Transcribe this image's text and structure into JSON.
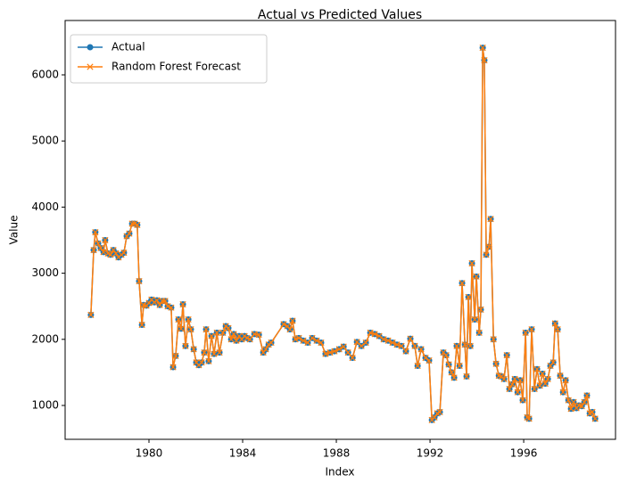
{
  "chart_data": {
    "type": "line",
    "title": "Actual vs Predicted Values",
    "xlabel": "Index",
    "ylabel": "Value",
    "x": [
      1977.52,
      1977.64,
      1977.71,
      1977.83,
      1977.94,
      1978.06,
      1978.13,
      1978.25,
      1978.36,
      1978.48,
      1978.59,
      1978.7,
      1978.82,
      1978.93,
      1979.05,
      1979.16,
      1979.28,
      1979.39,
      1979.5,
      1979.58,
      1979.7,
      1979.77,
      1979.89,
      1980.0,
      1980.11,
      1980.23,
      1980.34,
      1980.46,
      1980.57,
      1980.69,
      1980.8,
      1980.95,
      1981.03,
      1981.14,
      1981.26,
      1981.37,
      1981.45,
      1981.56,
      1981.68,
      1981.79,
      1981.91,
      1982.02,
      1982.13,
      1982.25,
      1982.36,
      1982.44,
      1982.55,
      1982.67,
      1982.78,
      1982.9,
      1983.01,
      1983.16,
      1983.28,
      1983.39,
      1983.51,
      1983.62,
      1983.73,
      1983.85,
      1983.96,
      1984.08,
      1984.19,
      1984.31,
      1984.5,
      1984.69,
      1984.88,
      1984.99,
      1985.11,
      1985.22,
      1985.75,
      1985.91,
      1986.02,
      1986.13,
      1986.25,
      1986.4,
      1986.59,
      1986.78,
      1986.97,
      1987.16,
      1987.35,
      1987.54,
      1987.73,
      1987.92,
      1988.12,
      1988.31,
      1988.5,
      1988.69,
      1988.88,
      1989.07,
      1989.26,
      1989.45,
      1989.64,
      1989.83,
      1990.02,
      1990.21,
      1990.4,
      1990.59,
      1990.78,
      1990.97,
      1991.16,
      1991.35,
      1991.47,
      1991.62,
      1991.81,
      1991.96,
      1992.08,
      1992.19,
      1992.31,
      1992.42,
      1992.57,
      1992.69,
      1992.8,
      1992.92,
      1993.03,
      1993.14,
      1993.26,
      1993.37,
      1993.49,
      1993.56,
      1993.64,
      1993.72,
      1993.79,
      1993.91,
      1993.98,
      1994.1,
      1994.17,
      1994.25,
      1994.32,
      1994.4,
      1994.52,
      1994.59,
      1994.71,
      1994.82,
      1994.94,
      1995.05,
      1995.16,
      1995.28,
      1995.39,
      1995.51,
      1995.62,
      1995.74,
      1995.85,
      1995.96,
      1996.08,
      1996.15,
      1996.23,
      1996.34,
      1996.46,
      1996.57,
      1996.69,
      1996.8,
      1996.92,
      1997.03,
      1997.14,
      1997.26,
      1997.34,
      1997.45,
      1997.56,
      1997.68,
      1997.79,
      1997.91,
      1998.02,
      1998.13,
      1998.25,
      1998.36,
      1998.48,
      1998.59,
      1998.7,
      1998.82,
      1998.93,
      1999.05
    ],
    "series": [
      {
        "name": "Actual",
        "color": "#1f77b4",
        "marker": "circle",
        "values": [
          2370,
          3350,
          3620,
          3450,
          3380,
          3320,
          3500,
          3300,
          3280,
          3350,
          3300,
          3240,
          3280,
          3310,
          3560,
          3600,
          3750,
          3750,
          3730,
          2880,
          2220,
          2520,
          2510,
          2550,
          2600,
          2560,
          2590,
          2520,
          2580,
          2580,
          2500,
          2480,
          1580,
          1750,
          2300,
          2160,
          2530,
          1900,
          2300,
          2150,
          1850,
          1650,
          1610,
          1650,
          1800,
          2150,
          1670,
          2050,
          1780,
          2100,
          1800,
          2100,
          2200,
          2170,
          2000,
          2080,
          1980,
          2050,
          2000,
          2050,
          2020,
          2000,
          2080,
          2070,
          1800,
          1850,
          1920,
          1950,
          2230,
          2200,
          2150,
          2280,
          2000,
          2020,
          1980,
          1950,
          2020,
          1980,
          1950,
          1780,
          1800,
          1820,
          1850,
          1890,
          1800,
          1720,
          1960,
          1900,
          1950,
          2100,
          2080,
          2050,
          2000,
          1980,
          1950,
          1920,
          1900,
          1820,
          2010,
          1900,
          1600,
          1850,
          1720,
          1680,
          780,
          820,
          880,
          900,
          1800,
          1760,
          1620,
          1500,
          1420,
          1900,
          1600,
          2850,
          1920,
          1440,
          2640,
          1900,
          3150,
          2300,
          2950,
          2100,
          2450,
          6410,
          6220,
          3280,
          3400,
          3820,
          2000,
          1630,
          1450,
          1440,
          1400,
          1760,
          1250,
          1320,
          1400,
          1200,
          1380,
          1080,
          2100,
          820,
          800,
          2150,
          1250,
          1550,
          1300,
          1480,
          1330,
          1400,
          1600,
          1650,
          2240,
          2150,
          1450,
          1200,
          1380,
          1080,
          950,
          1050,
          960,
          1000,
          990,
          1050,
          1150,
          880,
          900,
          800
        ]
      },
      {
        "name": "Random Forest Forecast",
        "color": "#ff7f0e",
        "marker": "x",
        "values": [
          2370,
          3350,
          3620,
          3450,
          3380,
          3320,
          3500,
          3300,
          3280,
          3350,
          3300,
          3240,
          3280,
          3310,
          3560,
          3600,
          3750,
          3750,
          3730,
          2880,
          2220,
          2520,
          2510,
          2550,
          2600,
          2560,
          2590,
          2520,
          2580,
          2580,
          2500,
          2480,
          1580,
          1750,
          2300,
          2160,
          2530,
          1900,
          2300,
          2150,
          1850,
          1650,
          1610,
          1650,
          1800,
          2150,
          1670,
          2050,
          1780,
          2100,
          1800,
          2100,
          2200,
          2170,
          2000,
          2080,
          1980,
          2050,
          2000,
          2050,
          2020,
          2000,
          2080,
          2070,
          1800,
          1850,
          1920,
          1950,
          2230,
          2200,
          2150,
          2280,
          2000,
          2020,
          1980,
          1950,
          2020,
          1980,
          1950,
          1780,
          1800,
          1820,
          1850,
          1890,
          1800,
          1720,
          1960,
          1900,
          1950,
          2100,
          2080,
          2050,
          2000,
          1980,
          1950,
          1920,
          1900,
          1820,
          2010,
          1900,
          1600,
          1850,
          1720,
          1680,
          780,
          820,
          880,
          900,
          1800,
          1760,
          1620,
          1500,
          1420,
          1900,
          1600,
          2850,
          1920,
          1440,
          2640,
          1900,
          3150,
          2300,
          2950,
          2100,
          2450,
          6410,
          6220,
          3280,
          3400,
          3820,
          2000,
          1630,
          1450,
          1440,
          1400,
          1760,
          1250,
          1320,
          1400,
          1200,
          1380,
          1080,
          2100,
          820,
          800,
          2150,
          1250,
          1550,
          1300,
          1480,
          1330,
          1400,
          1600,
          1650,
          2240,
          2150,
          1450,
          1200,
          1380,
          1080,
          950,
          1050,
          960,
          1000,
          990,
          1050,
          1150,
          880,
          900,
          800
        ]
      }
    ],
    "xlim": [
      1976.42,
      1999.92
    ],
    "xticks": [
      1980,
      1984,
      1988,
      1992,
      1996
    ],
    "ylim": [
      488,
      6822
    ],
    "yticks": [
      1000,
      2000,
      3000,
      4000,
      5000,
      6000
    ],
    "grid": false,
    "legend": "upper left"
  }
}
